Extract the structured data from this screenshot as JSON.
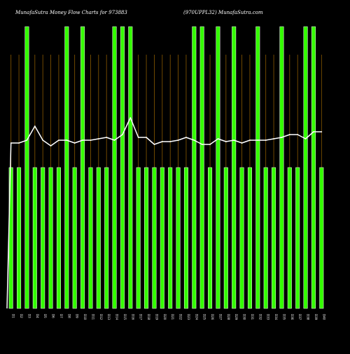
{
  "header": {
    "title_left": "MunafaSutra  Money Flow  Charts for 973883",
    "title_right": "(970UPPL32)  MunafaSutra.com"
  },
  "colors": {
    "background": "#000000",
    "bar": "#33ff00",
    "bar_edge": "#ffffff",
    "line": "#ffffff",
    "grid": "#8a5a00"
  },
  "chart_data": {
    "type": "bar",
    "title": "MunafaSutra  Money Flow  Charts for 973883",
    "grid": "vertical",
    "legend": "none",
    "categories": [
      "D1",
      "D2",
      "D3",
      "D4",
      "D5",
      "D6",
      "D7",
      "D8",
      "D9",
      "D10",
      "D11",
      "D12",
      "D13",
      "D14",
      "D15",
      "D16",
      "D17",
      "D18",
      "D19",
      "D20",
      "D21",
      "D22",
      "D23",
      "D24",
      "D25",
      "D26",
      "D27",
      "D28",
      "D29",
      "D30",
      "D31",
      "D32",
      "D33",
      "D34",
      "D35",
      "D36",
      "D37",
      "D38",
      "D39",
      "D40"
    ],
    "series": [
      {
        "type": "bar",
        "values": [
          50,
          50,
          100,
          50,
          50,
          50,
          50,
          100,
          50,
          100,
          50,
          50,
          50,
          100,
          100,
          100,
          50,
          50,
          50,
          50,
          50,
          50,
          50,
          100,
          100,
          50,
          100,
          50,
          100,
          50,
          50,
          100,
          50,
          50,
          100,
          50,
          50,
          100,
          100,
          50
        ]
      },
      {
        "type": "line",
        "values": [
          59,
          59,
          60,
          65,
          60,
          58,
          60,
          60,
          59,
          60,
          60,
          60.5,
          61,
          60,
          62,
          68,
          61,
          61,
          58.5,
          59.5,
          59.5,
          60,
          61,
          60,
          58.5,
          58.5,
          60.5,
          59.5,
          60,
          59,
          60,
          60,
          60,
          60.5,
          61,
          62,
          62,
          60.5,
          63,
          63
        ]
      }
    ],
    "ylim": [
      0,
      110
    ]
  }
}
